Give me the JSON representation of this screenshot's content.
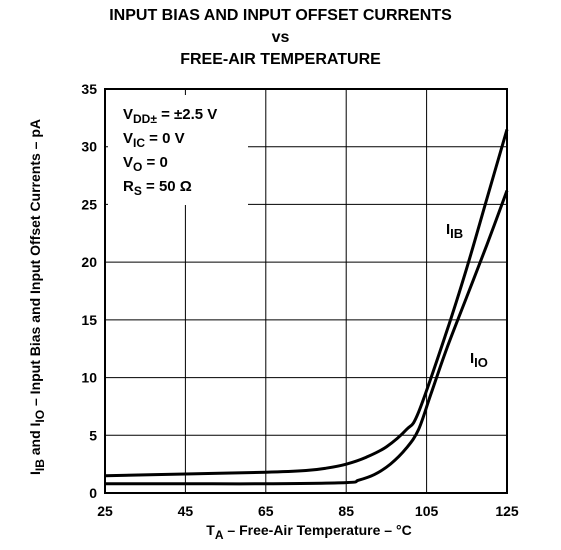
{
  "chart_data": {
    "type": "line",
    "title_lines": [
      "INPUT BIAS AND INPUT OFFSET CURRENTS",
      "vs",
      "FREE-AIR TEMPERATURE"
    ],
    "xlabel": {
      "main": "T",
      "sub": "A",
      "rest": " – Free-Air Temperature – °C"
    },
    "ylabel": {
      "parts": [
        {
          "t": "I",
          "sub": false
        },
        {
          "t": "IB",
          "sub": true
        },
        {
          "t": " and I",
          "sub": false
        },
        {
          "t": "IO",
          "sub": true
        },
        {
          "t": " – Input Bias and Input Offset Currents – pA",
          "sub": false
        }
      ]
    },
    "xlim": [
      25,
      125
    ],
    "ylim": [
      0,
      35
    ],
    "x_ticks": [
      "25",
      "45",
      "65",
      "85",
      "105",
      "125"
    ],
    "y_ticks": [
      "0",
      "5",
      "10",
      "15",
      "20",
      "25",
      "30",
      "35"
    ],
    "x_tick_values": [
      25,
      45,
      65,
      85,
      105,
      125
    ],
    "y_tick_values": [
      0,
      5,
      10,
      15,
      20,
      25,
      30,
      35
    ],
    "grid": true,
    "conditions": [
      {
        "main": "V",
        "sub": "DD±",
        "rest": " = ±2.5 V"
      },
      {
        "main": "V",
        "sub": "IC",
        "rest": " = 0 V"
      },
      {
        "main": "V",
        "sub": "O",
        "rest": " = 0"
      },
      {
        "main": "R",
        "sub": "S",
        "rest": " = 50 Ω"
      }
    ],
    "series": [
      {
        "name": "IB",
        "label_main": "I",
        "label_sub": "IB",
        "x": [
          25,
          45,
          65,
          75,
          80,
          85,
          90,
          95,
          100,
          103,
          110,
          115,
          120,
          125
        ],
        "y": [
          1.5,
          1.65,
          1.8,
          1.95,
          2.15,
          2.5,
          3.1,
          4.0,
          5.5,
          7.0,
          14.0,
          19.5,
          25.5,
          31.5
        ]
      },
      {
        "name": "IO",
        "label_main": "I",
        "label_sub": "IO",
        "x": [
          25,
          45,
          65,
          85,
          88,
          92,
          96,
          100,
          103,
          106,
          110,
          115,
          120,
          125
        ],
        "y": [
          0.8,
          0.8,
          0.8,
          0.9,
          1.1,
          1.6,
          2.5,
          3.9,
          5.5,
          8.5,
          12.5,
          17.0,
          21.5,
          26.2
        ]
      }
    ]
  }
}
